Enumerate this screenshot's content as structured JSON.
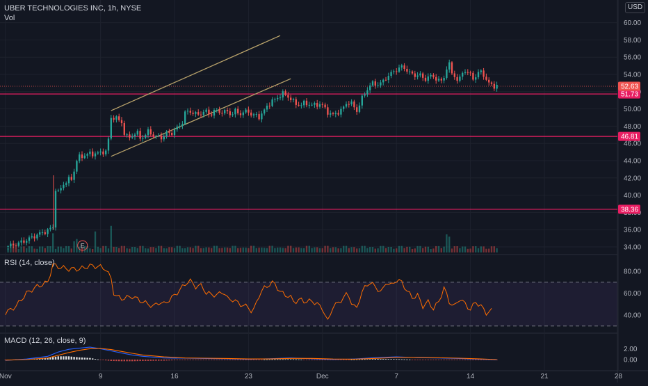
{
  "header": {
    "symbol_title": "UBER TECHNOLOGIES INC, 1h, NYSE",
    "vol_label": "Vol",
    "currency": "USD"
  },
  "indicators": {
    "rsi_label": "RSI (14, close)",
    "macd_label": "MACD (12, 26, close, 9)"
  },
  "colors": {
    "background": "#131722",
    "up": "#26a69a",
    "down": "#ef5350",
    "channel": "#b9a36b",
    "hline": "#e91e63",
    "rsi": "#ff6d00",
    "macd": "#2962ff",
    "signal": "#ff6d00"
  },
  "chart_data": [
    {
      "type": "candlestick",
      "title": "UBER TECHNOLOGIES INC, 1h, NYSE",
      "x_ticks": [
        "Nov",
        "9",
        "16",
        "23",
        "Dec",
        "7",
        "14",
        "21",
        "28"
      ],
      "y_ticks": [
        "34.00",
        "36.00",
        "38.00",
        "40.00",
        "42.00",
        "44.00",
        "46.00",
        "48.00",
        "50.00",
        "52.00",
        "54.00",
        "56.00",
        "58.00",
        "60.00"
      ],
      "ylim": [
        33.5,
        60.5
      ],
      "last_price": "52.63",
      "price_markers": [
        "51.73",
        "46.81",
        "38.36"
      ],
      "horizontal_levels": [
        51.73,
        46.81,
        38.36
      ],
      "channel_upper": [
        [
          9,
          49.8
        ],
        [
          25,
          58.5
        ]
      ],
      "channel_lower": [
        [
          9,
          44.5
        ],
        [
          26,
          53.5
        ]
      ],
      "earnings_marker": "E",
      "price_path": [
        [
          -1,
          34.0
        ],
        [
          0,
          34.3
        ],
        [
          1,
          34.8
        ],
        [
          2,
          35.4
        ],
        [
          3,
          35.9
        ],
        [
          3.5,
          36.3
        ],
        [
          3.6,
          41.0
        ],
        [
          4,
          40.3
        ],
        [
          4.5,
          41.3
        ],
        [
          5,
          41.8
        ],
        [
          5.4,
          41.9
        ],
        [
          5.6,
          43.8
        ],
        [
          6,
          44.4
        ],
        [
          6.6,
          44.7
        ],
        [
          7,
          44.8
        ],
        [
          7.4,
          44.8
        ],
        [
          8,
          44.9
        ],
        [
          8.3,
          45.1
        ],
        [
          8.6,
          45.0
        ],
        [
          9.0,
          48.9
        ],
        [
          9.3,
          49.1
        ],
        [
          9.6,
          48.8
        ],
        [
          10,
          48.4
        ],
        [
          10.3,
          47.0
        ],
        [
          10.6,
          46.6
        ],
        [
          11,
          46.9
        ],
        [
          11.4,
          47.3
        ],
        [
          11.8,
          46.6
        ],
        [
          12.2,
          46.9
        ],
        [
          12.6,
          47.5
        ],
        [
          13,
          46.9
        ],
        [
          13.4,
          46.7
        ],
        [
          14,
          46.8
        ],
        [
          14.3,
          47.3
        ],
        [
          14.6,
          47.1
        ],
        [
          15,
          47.5
        ],
        [
          15.5,
          48.1
        ],
        [
          15.9,
          48.7
        ],
        [
          16,
          49.5
        ],
        [
          16.4,
          49.8
        ],
        [
          16.8,
          49.5
        ],
        [
          17.2,
          49.3
        ],
        [
          17.6,
          49.6
        ],
        [
          18,
          49.7
        ],
        [
          18.4,
          49.3
        ],
        [
          18.8,
          49.8
        ],
        [
          19.2,
          49.7
        ],
        [
          19.6,
          49.6
        ],
        [
          20,
          49.7
        ],
        [
          20.4,
          49.3
        ],
        [
          20.8,
          49.8
        ],
        [
          21.2,
          49.4
        ],
        [
          21.6,
          49.6
        ],
        [
          22,
          49.8
        ],
        [
          22.3,
          49.2
        ],
        [
          22.6,
          49.3
        ],
        [
          23,
          49.1
        ],
        [
          23.4,
          49.6
        ],
        [
          23.8,
          50.4
        ],
        [
          24.2,
          50.9
        ],
        [
          24.6,
          51.1
        ],
        [
          25,
          51.6
        ],
        [
          25.3,
          51.8
        ],
        [
          25.6,
          51.5
        ],
        [
          26,
          51.2
        ],
        [
          26.3,
          50.7
        ],
        [
          26.6,
          50.5
        ],
        [
          27,
          50.5
        ],
        [
          27.4,
          50.7
        ],
        [
          27.8,
          50.5
        ],
        [
          28.2,
          50.4
        ],
        [
          28.6,
          50.6
        ],
        [
          29,
          50.4
        ],
        [
          29.4,
          49.8
        ],
        [
          29.7,
          49.4
        ],
        [
          30,
          49.3
        ],
        [
          30.4,
          49.6
        ],
        [
          30.8,
          49.8
        ],
        [
          31.2,
          50.6
        ],
        [
          31.6,
          50.8
        ],
        [
          32,
          50.2
        ],
        [
          32.3,
          49.7
        ],
        [
          32.6,
          50.9
        ],
        [
          33,
          51.8
        ],
        [
          33.4,
          52.6
        ],
        [
          33.8,
          53.0
        ],
        [
          34.2,
          52.8
        ],
        [
          34.6,
          53.0
        ],
        [
          35,
          53.6
        ],
        [
          35.4,
          54.0
        ],
        [
          35.8,
          54.4
        ],
        [
          36.2,
          54.7
        ],
        [
          36.6,
          54.9
        ],
        [
          37,
          54.5
        ],
        [
          37.4,
          54.0
        ],
        [
          37.8,
          53.9
        ],
        [
          38.2,
          54.0
        ],
        [
          38.6,
          53.4
        ],
        [
          39,
          53.7
        ],
        [
          39.4,
          53.8
        ],
        [
          39.8,
          53.5
        ],
        [
          40.2,
          53.1
        ],
        [
          40.6,
          53.9
        ],
        [
          40.9,
          55.6
        ],
        [
          41.2,
          54.2
        ],
        [
          41.6,
          53.7
        ],
        [
          41.9,
          53.0
        ],
        [
          42.2,
          54.3
        ],
        [
          42.6,
          54.4
        ],
        [
          43,
          53.9
        ],
        [
          43.4,
          53.5
        ],
        [
          43.8,
          54.3
        ],
        [
          44.2,
          54.2
        ],
        [
          44.5,
          53.3
        ],
        [
          44.8,
          52.9
        ],
        [
          45.2,
          52.7
        ],
        [
          45.5,
          52.6
        ]
      ],
      "volume_spikes": [
        [
          3.5,
          10
        ],
        [
          5.6,
          5
        ],
        [
          7.5,
          10
        ],
        [
          9,
          15
        ],
        [
          40.9,
          8
        ]
      ],
      "rsi": {
        "levels": [
          70,
          30
        ],
        "y_ticks": [
          "40.00",
          "60.00",
          "80.00"
        ],
        "ylim": [
          28,
          90
        ],
        "values": [
          [
            -1,
            42
          ],
          [
            0,
            48
          ],
          [
            1,
            60
          ],
          [
            2,
            66
          ],
          [
            3,
            70
          ],
          [
            3.5,
            86
          ],
          [
            4,
            84
          ],
          [
            5,
            82
          ],
          [
            6,
            82
          ],
          [
            7,
            85
          ],
          [
            8,
            84
          ],
          [
            8.5,
            82
          ],
          [
            9,
            73
          ],
          [
            9.3,
            58
          ],
          [
            10,
            55
          ],
          [
            11,
            57
          ],
          [
            12,
            52
          ],
          [
            13,
            48
          ],
          [
            13.6,
            52
          ],
          [
            14,
            50
          ],
          [
            15,
            58
          ],
          [
            16,
            68
          ],
          [
            16.4,
            72
          ],
          [
            17,
            66
          ],
          [
            17.6,
            67
          ],
          [
            18,
            60
          ],
          [
            19,
            58
          ],
          [
            19.6,
            62
          ],
          [
            20,
            55
          ],
          [
            20.5,
            54
          ],
          [
            21.2,
            50
          ],
          [
            22,
            47
          ],
          [
            22.4,
            42
          ],
          [
            23,
            58
          ],
          [
            23.4,
            64
          ],
          [
            24,
            68
          ],
          [
            24.4,
            70
          ],
          [
            25,
            61
          ],
          [
            26,
            56
          ],
          [
            26.3,
            52
          ],
          [
            27,
            54
          ],
          [
            27.4,
            52
          ],
          [
            28,
            53
          ],
          [
            28.5,
            50
          ],
          [
            29,
            46
          ],
          [
            29.5,
            34
          ],
          [
            30,
            48
          ],
          [
            30.5,
            51
          ],
          [
            31,
            56
          ],
          [
            31.4,
            60
          ],
          [
            31.8,
            50
          ],
          [
            32.2,
            45
          ],
          [
            32.6,
            58
          ],
          [
            33,
            65
          ],
          [
            33.4,
            70
          ],
          [
            34,
            66
          ],
          [
            34.6,
            60
          ],
          [
            35,
            70
          ],
          [
            35.5,
            67
          ],
          [
            36,
            72
          ],
          [
            36.5,
            70
          ],
          [
            37,
            62
          ],
          [
            37.5,
            56
          ],
          [
            38,
            58
          ],
          [
            38.5,
            48
          ],
          [
            39,
            52
          ],
          [
            39.5,
            46
          ],
          [
            40,
            52
          ],
          [
            40.5,
            65
          ],
          [
            41,
            52
          ],
          [
            41.5,
            48
          ],
          [
            42,
            55
          ],
          [
            42.5,
            50
          ],
          [
            43,
            45
          ],
          [
            43.5,
            52
          ],
          [
            44,
            48
          ],
          [
            44.5,
            42
          ],
          [
            45,
            44
          ]
        ]
      },
      "macd": {
        "y_ticks": [
          "0.00",
          "2.00"
        ],
        "ylim": [
          -0.8,
          2.8
        ],
        "macd": [
          [
            -1,
            -0.15
          ],
          [
            1,
            0.1
          ],
          [
            3,
            0.6
          ],
          [
            4,
            1.4
          ],
          [
            5,
            1.9
          ],
          [
            6,
            2.1
          ],
          [
            7,
            2.3
          ],
          [
            8,
            2.0
          ],
          [
            9,
            1.6
          ],
          [
            10,
            1.2
          ],
          [
            11,
            0.85
          ],
          [
            12,
            0.6
          ],
          [
            14,
            0.3
          ],
          [
            16,
            0.25
          ],
          [
            18,
            0.2
          ],
          [
            20,
            0.15
          ],
          [
            22,
            0.05
          ],
          [
            24,
            0.15
          ],
          [
            26,
            0.3
          ],
          [
            28,
            0.15
          ],
          [
            30,
            0.0
          ],
          [
            32,
            0.1
          ],
          [
            34,
            0.35
          ],
          [
            36,
            0.5
          ],
          [
            38,
            0.35
          ],
          [
            40,
            0.3
          ],
          [
            42,
            0.2
          ],
          [
            44,
            0.05
          ],
          [
            45.5,
            -0.05
          ]
        ],
        "signal": [
          [
            -1,
            -0.1
          ],
          [
            1,
            0.0
          ],
          [
            3,
            0.3
          ],
          [
            4,
            0.8
          ],
          [
            5,
            1.3
          ],
          [
            6,
            1.7
          ],
          [
            7,
            2.0
          ],
          [
            8,
            2.05
          ],
          [
            9,
            1.85
          ],
          [
            10,
            1.5
          ],
          [
            11,
            1.15
          ],
          [
            12,
            0.85
          ],
          [
            14,
            0.5
          ],
          [
            16,
            0.3
          ],
          [
            18,
            0.25
          ],
          [
            20,
            0.2
          ],
          [
            22,
            0.12
          ],
          [
            24,
            0.12
          ],
          [
            26,
            0.22
          ],
          [
            28,
            0.22
          ],
          [
            30,
            0.1
          ],
          [
            32,
            0.08
          ],
          [
            34,
            0.22
          ],
          [
            36,
            0.4
          ],
          [
            38,
            0.4
          ],
          [
            40,
            0.33
          ],
          [
            42,
            0.25
          ],
          [
            44,
            0.12
          ],
          [
            45.5,
            0.0
          ]
        ]
      }
    }
  ]
}
